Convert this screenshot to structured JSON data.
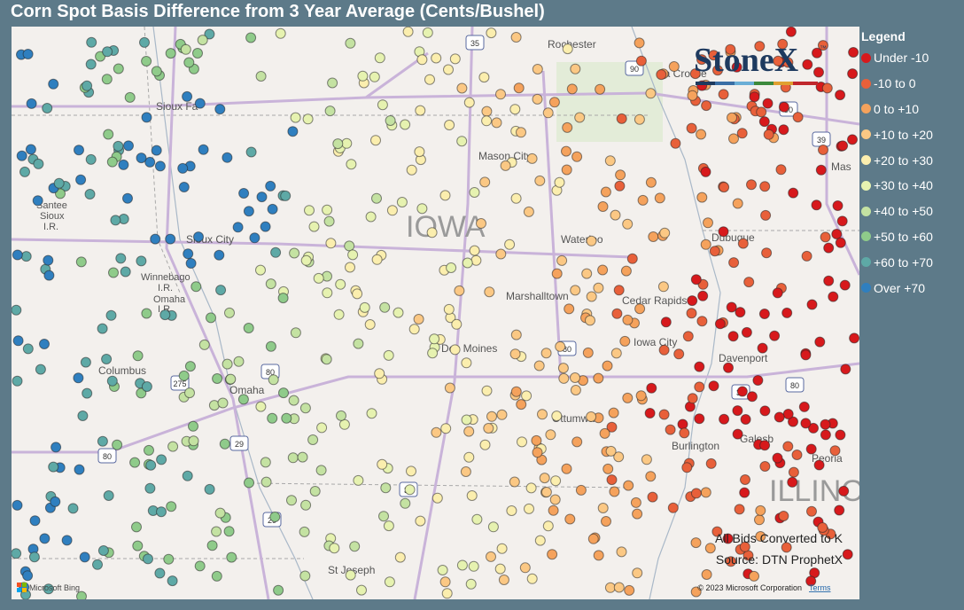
{
  "header": {
    "title": "Corn Spot Basis Difference from 3 Year Average (Cents/Bushel)"
  },
  "logo": {
    "text": "StoneX",
    "mark": "™"
  },
  "legend": {
    "title": "Legend",
    "items": [
      {
        "label": "Under -10",
        "color": "#d7191c"
      },
      {
        "label": "-10 to 0",
        "color": "#e8603a"
      },
      {
        "label": "0 to +10",
        "color": "#f5a25c"
      },
      {
        "label": "+10 to +20",
        "color": "#fbc884"
      },
      {
        "label": "+20 to +30",
        "color": "#fbeeae"
      },
      {
        "label": "+30 to +40",
        "color": "#e6f2b0"
      },
      {
        "label": "+40 to +50",
        "color": "#c4e2a2"
      },
      {
        "label": "+50 to +60",
        "color": "#8fcb8a"
      },
      {
        "label": "+60 to +70",
        "color": "#5ea9a6"
      },
      {
        "label": "Over +70",
        "color": "#2f7fbf"
      }
    ]
  },
  "map": {
    "labels": [
      "IOWA",
      "ILLINO",
      "Sioux Fa",
      "Sioux City",
      "Omaha",
      "Columbus",
      "Des Moines",
      "Mason City",
      "Waterloo",
      "Marshalltown",
      "Cedar Rapids",
      "Iowa City",
      "Davenport",
      "Dubuque",
      "Ottumwa",
      "Burlington",
      "Galesb",
      "Peoria",
      "Rochester",
      "La Crosse",
      "St Joseph",
      "Winnebago",
      "I.R.",
      "Omaha",
      "I.R.",
      "Santee",
      "Sioux",
      "I.R.",
      "Mas"
    ],
    "shields": [
      "35",
      "90",
      "80",
      "29",
      "275",
      "90",
      "39",
      "80",
      "35",
      "29",
      "80",
      "80",
      "35"
    ]
  },
  "notes": {
    "converted": "All Bids Converted to K",
    "source": "Source: DTN ProphetX",
    "copyright": "© 2023 Microsoft Corporation",
    "terms": "Terms",
    "bing": "Microsoft Bing"
  }
}
